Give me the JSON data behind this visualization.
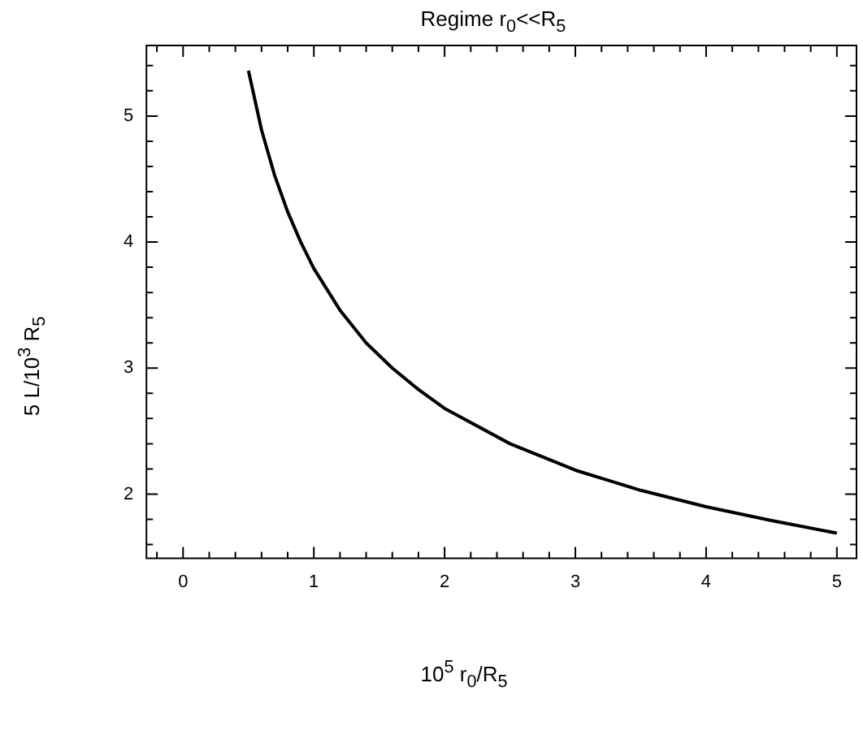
{
  "chart_data": {
    "type": "line",
    "title": "Regime r$_{0}$<<R$_{5}$",
    "xlabel": "10$^{5}$ r$_{0}$/R$_{5}$",
    "ylabel": "5 L/10$^{3}$ R$_{5}$",
    "x": [
      0.5,
      0.6,
      0.7,
      0.8,
      0.9,
      1,
      1.2,
      1.4,
      1.6,
      1.8,
      2,
      2.5,
      3,
      3.5,
      4,
      4.5,
      5
    ],
    "series": [
      {
        "color": "#000000",
        "values": [
          5.36,
          4.89,
          4.53,
          4.24,
          4.0,
          3.79,
          3.46,
          3.2,
          3.0,
          2.83,
          2.68,
          2.4,
          2.19,
          2.03,
          1.9,
          1.79,
          1.69
        ]
      }
    ],
    "xlim": [
      -0.28,
      5.15
    ],
    "ylim": [
      1.49,
      5.56
    ],
    "xticks": [
      {
        "value": -0.2,
        "label": null
      },
      0,
      {
        "value": 0.2,
        "label": null
      },
      {
        "value": 0.4,
        "label": null
      },
      {
        "value": 0.6,
        "label": null
      },
      {
        "value": 0.8,
        "label": null
      },
      1,
      {
        "value": 1.2,
        "label": null
      },
      {
        "value": 1.4,
        "label": null
      },
      {
        "value": 1.6,
        "label": null
      },
      {
        "value": 1.8,
        "label": null
      },
      2,
      {
        "value": 2.2,
        "label": null
      },
      {
        "value": 2.4,
        "label": null
      },
      {
        "value": 2.6,
        "label": null
      },
      {
        "value": 2.8,
        "label": null
      },
      3,
      {
        "value": 3.2,
        "label": null
      },
      {
        "value": 3.4,
        "label": null
      },
      {
        "value": 3.6,
        "label": null
      },
      {
        "value": 3.8,
        "label": null
      },
      4,
      {
        "value": 4.2,
        "label": null
      },
      {
        "value": 4.4,
        "label": null
      },
      {
        "value": 4.6,
        "label": null
      },
      {
        "value": 4.8,
        "label": null
      },
      5
    ],
    "yticks": [
      {
        "value": 1.6,
        "label": null
      },
      {
        "value": 1.8,
        "label": null
      },
      2,
      {
        "value": 2.2,
        "label": null
      },
      {
        "value": 2.4,
        "label": null
      },
      {
        "value": 2.6,
        "label": null
      },
      {
        "value": 2.8,
        "label": null
      },
      3,
      {
        "value": 3.2,
        "label": null
      },
      {
        "value": 3.4,
        "label": null
      },
      {
        "value": 3.6,
        "label": null
      },
      {
        "value": 3.8,
        "label": null
      },
      4,
      {
        "value": 4.2,
        "label": null
      },
      {
        "value": 4.4,
        "label": null
      },
      {
        "value": 4.6,
        "label": null
      },
      {
        "value": 4.8,
        "label": null
      },
      5,
      {
        "value": 5.2,
        "label": null
      },
      {
        "value": 5.4,
        "label": null
      }
    ],
    "grid": false,
    "legend": false,
    "marker": "none",
    "line_style": "solid"
  }
}
